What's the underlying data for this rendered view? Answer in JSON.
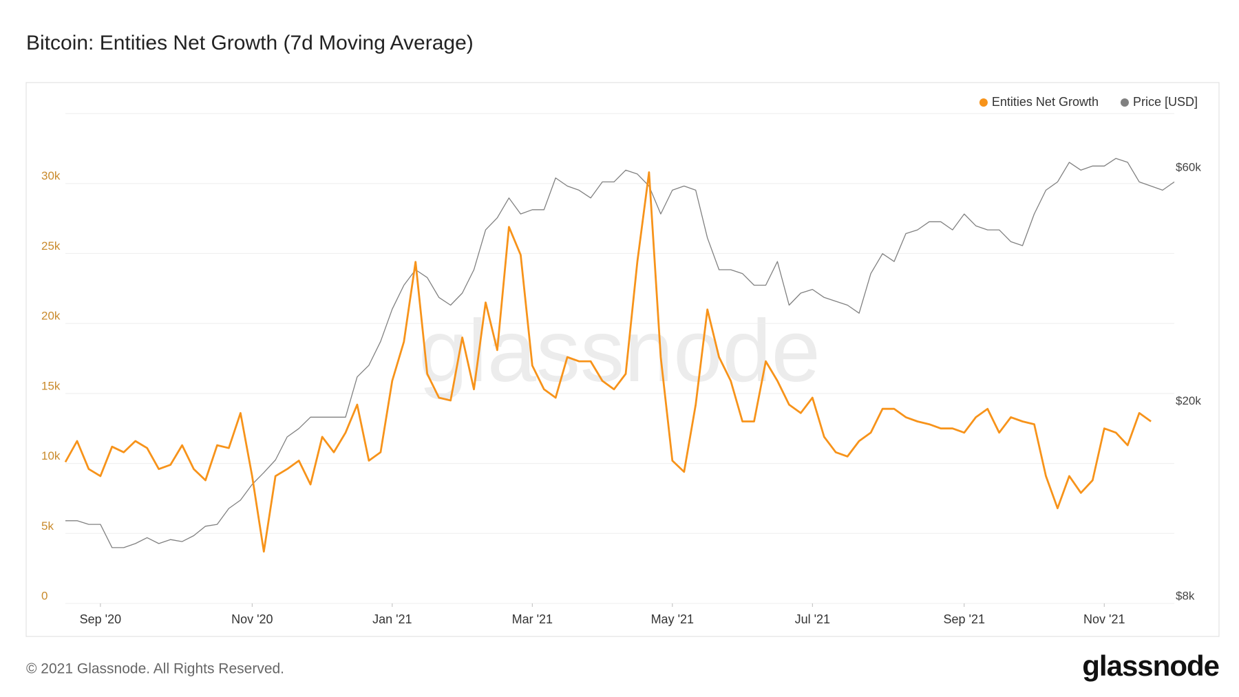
{
  "chart_data": {
    "type": "line",
    "title": "Bitcoin: Entities Net Growth (7d Moving Average)",
    "watermark": "glassnode",
    "categories": [
      null,
      null,
      null,
      "Sep '20",
      null,
      null,
      null,
      null,
      null,
      null,
      null,
      null,
      null,
      null,
      null,
      null,
      "Nov '20",
      null,
      null,
      null,
      null,
      null,
      null,
      null,
      null,
      null,
      null,
      null,
      "Jan '21",
      null,
      null,
      null,
      null,
      null,
      null,
      null,
      null,
      null,
      null,
      null,
      "Mar '21",
      null,
      null,
      null,
      null,
      null,
      null,
      null,
      null,
      null,
      null,
      null,
      "May '21",
      null,
      null,
      null,
      null,
      null,
      null,
      null,
      null,
      null,
      null,
      null,
      "Jul '21",
      null,
      null,
      null,
      null,
      null,
      null,
      null,
      null,
      null,
      null,
      null,
      null,
      "Sep '21",
      null,
      null,
      null,
      null,
      null,
      null,
      null,
      null,
      null,
      null,
      null,
      "Nov '21",
      null,
      null,
      null,
      null,
      null,
      null
    ],
    "series": [
      {
        "name": "Entities Net Growth",
        "color": "#f7931a",
        "values": [
          10100,
          11600,
          9600,
          9100,
          11200,
          10800,
          11600,
          11100,
          9600,
          9900,
          11300,
          9600,
          8800,
          11300,
          11100,
          13600,
          9100,
          3700,
          9100,
          9600,
          10200,
          8500,
          11900,
          10800,
          12200,
          14200,
          10200,
          10800,
          15900,
          18700,
          24400,
          16400,
          14700,
          14500,
          19000,
          15300,
          21500,
          18100,
          26900,
          24900,
          17000,
          15300,
          14700,
          17600,
          17300,
          17300,
          15900,
          15300,
          16400,
          24400,
          30800,
          17600,
          10200,
          9400,
          14200,
          21000,
          17600,
          15900,
          13000,
          13000,
          17300,
          15900,
          14200,
          13600,
          14700,
          11900,
          10800,
          10500,
          11600,
          12200,
          13900,
          13900,
          13300,
          13000,
          12800,
          12500,
          12500,
          12200,
          13300,
          13900,
          12200,
          13300,
          13000,
          12800,
          9100,
          6800,
          9100,
          7900,
          8800,
          12500,
          12200,
          11300,
          13600,
          13000,
          null,
          null
        ]
      },
      {
        "name": "Price [USD]",
        "color": "#808080",
        "axis": "y2",
        "values": [
          11800,
          11800,
          11600,
          11600,
          10400,
          10400,
          10600,
          10900,
          10600,
          10800,
          10700,
          11000,
          11500,
          11600,
          12500,
          13000,
          14000,
          14800,
          15700,
          17500,
          18200,
          19200,
          19200,
          19200,
          19200,
          23200,
          24500,
          27400,
          31900,
          35700,
          38400,
          37000,
          33700,
          32500,
          34400,
          38400,
          46300,
          49000,
          53800,
          49900,
          50900,
          50900,
          59100,
          56900,
          55800,
          53800,
          58000,
          58000,
          61300,
          60200,
          56900,
          49900,
          55800,
          56900,
          55800,
          44600,
          38400,
          38400,
          37700,
          35700,
          35700,
          39900,
          32500,
          34400,
          35000,
          33700,
          33100,
          32500,
          31300,
          37700,
          41400,
          39900,
          45500,
          46300,
          48100,
          48100,
          46300,
          49900,
          47200,
          46300,
          46300,
          43800,
          43000,
          49900,
          55800,
          58000,
          63600,
          61300,
          62500,
          62500,
          64800,
          63600,
          58000,
          56900,
          55800,
          58000
        ]
      }
    ],
    "ylim": [
      0,
      35000
    ],
    "yticks": [
      {
        "value": 0,
        "label": "0"
      },
      {
        "value": 5000,
        "label": "5k"
      },
      {
        "value": 10000,
        "label": "10k"
      },
      {
        "value": 15000,
        "label": "15k"
      },
      {
        "value": 20000,
        "label": "20k"
      },
      {
        "value": 25000,
        "label": "25k"
      },
      {
        "value": 30000,
        "label": "30k"
      }
    ],
    "y2lim": [
      8000,
      80000
    ],
    "y2ticks": [
      {
        "value": 8000,
        "label": "$8k"
      },
      {
        "value": 20000,
        "label": "$20k"
      },
      {
        "value": 60000,
        "label": "$60k"
      }
    ],
    "y2log": true,
    "grid": true,
    "legend": "top-right"
  },
  "footer": {
    "copyright": "© 2021 Glassnode. All Rights Reserved.",
    "logo": "glassnode"
  }
}
